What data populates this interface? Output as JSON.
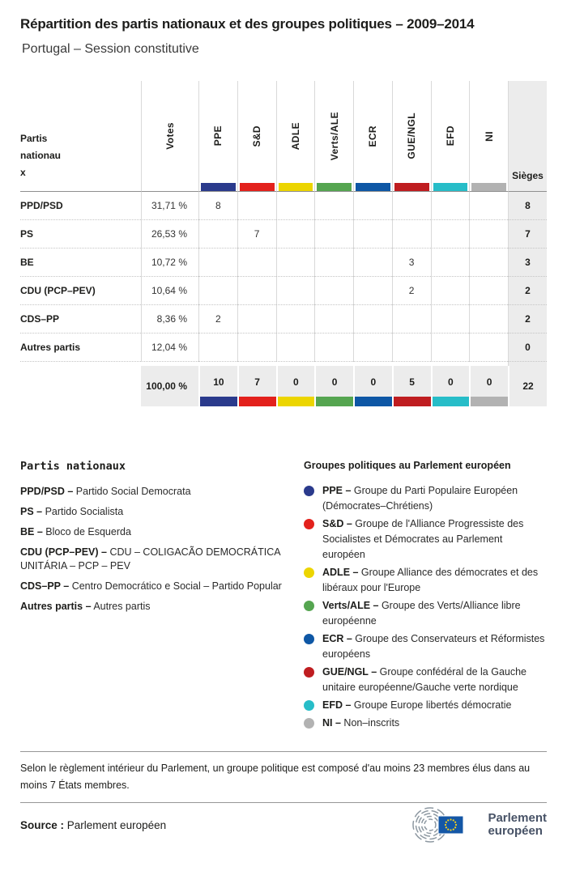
{
  "page": {
    "title": "Répartition des partis nationaux et des groupes politiques – 2009–2014",
    "subtitle": "Portugal – Session constitutive"
  },
  "chart_data": {
    "type": "table",
    "title": "Répartition des partis nationaux et des groupes politiques – 2009–2014",
    "subtitle": "Portugal – Session constitutive",
    "corner_label": "Partis\nnationau\nx",
    "votes_header": "Votes",
    "seats_header": "Sièges",
    "groups": [
      {
        "code": "PPE",
        "color": "#2a3a8c"
      },
      {
        "code": "S&D",
        "color": "#e3211c"
      },
      {
        "code": "ADLE",
        "color": "#ecd500"
      },
      {
        "code": "Verts/ALE",
        "color": "#55a550"
      },
      {
        "code": "ECR",
        "color": "#0e57a5"
      },
      {
        "code": "GUE/NGL",
        "color": "#bf1d20"
      },
      {
        "code": "EFD",
        "color": "#27bdc8"
      },
      {
        "code": "NI",
        "color": "#b2b2b2"
      }
    ],
    "rows": [
      {
        "party": "PPD/PSD",
        "votes": "31,71 %",
        "by_group": [
          "8",
          "",
          "",
          "",
          "",
          "",
          "",
          ""
        ],
        "seats": "8"
      },
      {
        "party": "PS",
        "votes": "26,53 %",
        "by_group": [
          "",
          "7",
          "",
          "",
          "",
          "",
          "",
          ""
        ],
        "seats": "7"
      },
      {
        "party": "BE",
        "votes": "10,72 %",
        "by_group": [
          "",
          "",
          "",
          "",
          "",
          "3",
          "",
          ""
        ],
        "seats": "3"
      },
      {
        "party": "CDU (PCP–PEV)",
        "votes": "10,64 %",
        "by_group": [
          "",
          "",
          "",
          "",
          "",
          "2",
          "",
          ""
        ],
        "seats": "2"
      },
      {
        "party": "CDS–PP",
        "votes": "8,36 %",
        "by_group": [
          "2",
          "",
          "",
          "",
          "",
          "",
          "",
          ""
        ],
        "seats": "2"
      },
      {
        "party": "Autres partis",
        "votes": "12,04 %",
        "by_group": [
          "",
          "",
          "",
          "",
          "",
          "",
          "",
          ""
        ],
        "seats": "0"
      }
    ],
    "total": {
      "votes": "100,00 %",
      "by_group": [
        "10",
        "7",
        "0",
        "0",
        "0",
        "5",
        "0",
        "0"
      ],
      "seats": "22"
    }
  },
  "legend_parties": {
    "title": "Partis nationaux",
    "items": [
      {
        "term": "PPD/PSD –",
        "desc": "Partido Social Democrata"
      },
      {
        "term": "PS –",
        "desc": "Partido Socialista"
      },
      {
        "term": "BE –",
        "desc": "Bloco de Esquerda"
      },
      {
        "term": "CDU (PCP–PEV) –",
        "desc": "CDU – COLIGACÃO DEMOCRÁTICA UNITÁRIA – PCP – PEV"
      },
      {
        "term": "CDS–PP –",
        "desc": "Centro Democrático e Social – Partido Popular"
      },
      {
        "term": "Autres partis –",
        "desc": "Autres partis"
      }
    ]
  },
  "legend_groups": {
    "title": "Groupes politiques au Parlement européen",
    "items": [
      {
        "term": "PPE –",
        "desc": "Groupe du Parti Populaire Européen (Démocrates–Chrétiens)"
      },
      {
        "term": "S&D –",
        "desc": "Groupe de l'Alliance Progressiste des Socialistes et Démocrates au Parlement européen"
      },
      {
        "term": "ADLE –",
        "desc": "Groupe Alliance des démocrates et des libéraux pour l'Europe"
      },
      {
        "term": "Verts/ALE –",
        "desc": "Groupe des Verts/Alliance libre européenne"
      },
      {
        "term": "ECR –",
        "desc": "Groupe des Conservateurs et Réformistes européens"
      },
      {
        "term": "GUE/NGL –",
        "desc": "Groupe confédéral de la Gauche unitaire européenne/Gauche verte nordique"
      },
      {
        "term": "EFD –",
        "desc": "Groupe Europe libertés démocratie"
      },
      {
        "term": "NI –",
        "desc": "Non–inscrits"
      }
    ]
  },
  "footnote": "Selon le règlement intérieur du Parlement, un groupe politique est composé d'au moins 23 membres élus dans au moins 7 États membres.",
  "source": {
    "label": "Source :",
    "value": "Parlement européen"
  },
  "logo": {
    "line1": "Parlement",
    "line2": "européen",
    "flag_blue": "#1457a6",
    "star_yellow": "#f7d11b",
    "arc_gray": "#8d98a1"
  }
}
